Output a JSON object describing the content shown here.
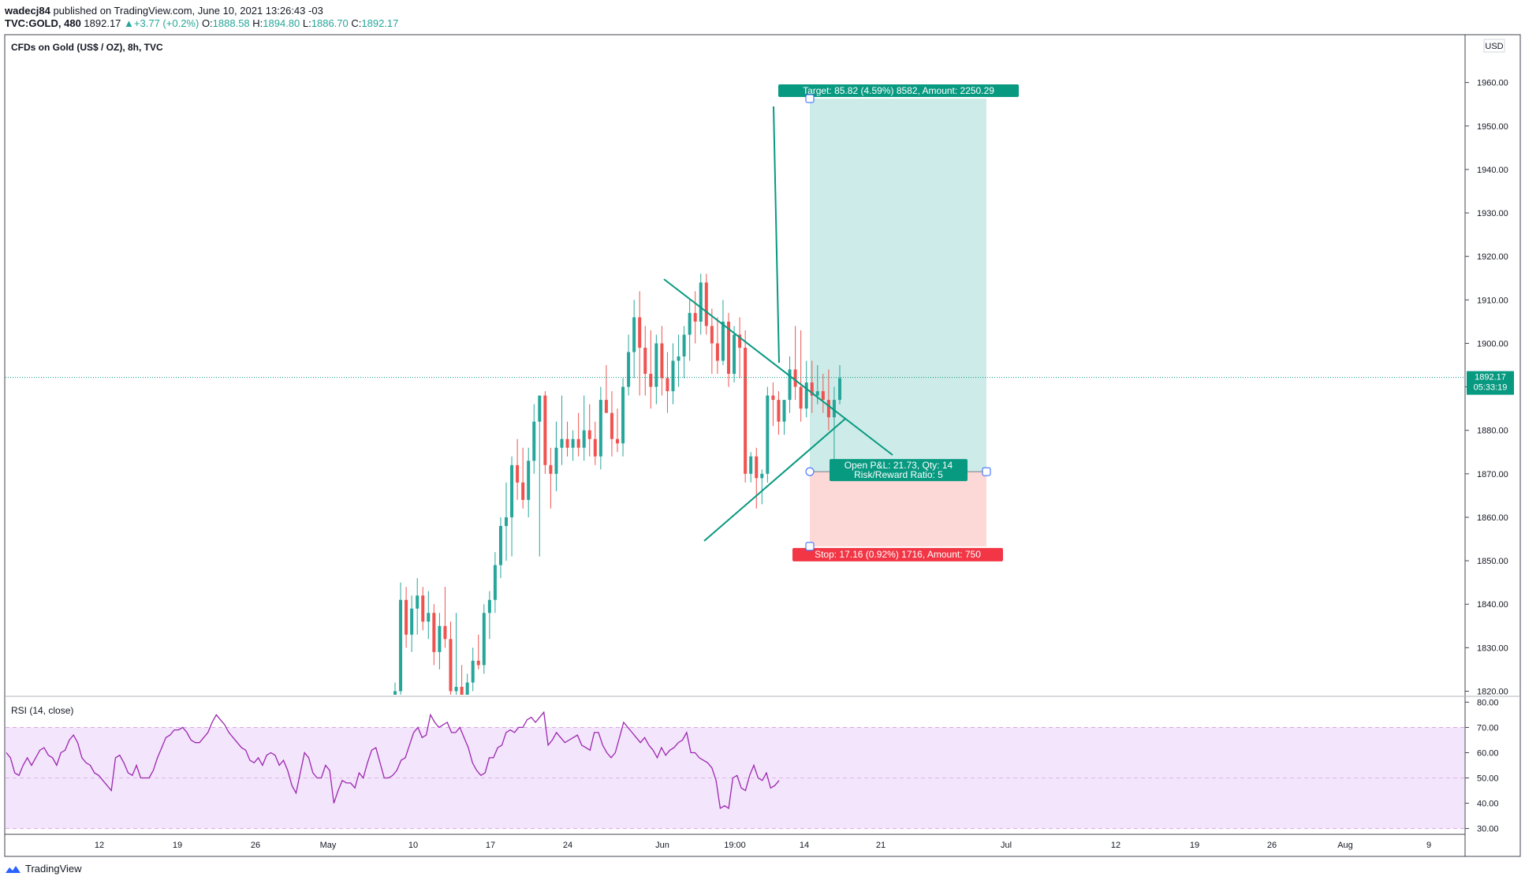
{
  "header": {
    "publisher": "wadecj84",
    "published_text": "published on TradingView.com, June 10, 2021 13:26:43 -03",
    "symbol": "TVC:GOLD, 480",
    "last": "1892.17",
    "change": "+3.77 (+0.2%)",
    "open_label": "O:",
    "open": "1888.58",
    "high_label": "H:",
    "high": "1894.80",
    "low_label": "L:",
    "low": "1886.70",
    "close_label": "C:",
    "close": "1892.17"
  },
  "pane_title": "CFDs on Gold (US$ / OZ), 8h, TVC",
  "currency_label": "USD",
  "price_label": "1892.17",
  "countdown": "05:33:19",
  "rsi_title": "RSI (14, close)",
  "footer_brand": "TradingView",
  "colors": {
    "up": "#26a69a",
    "down": "#ef5350",
    "line": "#089981",
    "target_bg": "#cdebe8",
    "stop_bg": "#fcd9d7",
    "rsi_line": "#9c27b0",
    "rsi_band": "#f3e5fb"
  },
  "position": {
    "target_label": "Target: 85.82 (4.59%) 8582, Amount: 2250.29",
    "stop_label": "Stop: 17.16 (0.92%) 1716, Amount: 750",
    "pnl_label": "Open P&L: 21.73, Qty: 14",
    "rr_label": "Risk/Reward Ratio: 5",
    "entry": 1870.5,
    "target": 1956.3,
    "stop": 1853.3
  },
  "chart_data": [
    {
      "type": "candlestick",
      "title": "CFDs on Gold (US$ / OZ), 8h, TVC",
      "ylim": [
        1819,
        1971
      ],
      "y_ticks": [
        1820,
        1830,
        1840,
        1850,
        1860,
        1870,
        1880,
        1890,
        1900,
        1910,
        1920,
        1930,
        1940,
        1950,
        1960
      ],
      "y_tick_labels": [
        "1820.00",
        "1830.00",
        "1840.00",
        "1850.00",
        "1860.00",
        "1870.00",
        "1880.00",
        "1890.00",
        "1900.00",
        "1910.00",
        "1920.00",
        "1930.00",
        "1940.00",
        "1950.00",
        "1960.00"
      ],
      "x_tick_labels": [
        "12",
        "19",
        "26",
        "May",
        "10",
        "17",
        "24",
        "Jun",
        "19:00",
        "14",
        "21",
        "Jul",
        "12",
        "19",
        "26",
        "Aug",
        "9"
      ],
      "last_price": 1892.17,
      "candles": [
        [
          1819,
          1822,
          1817,
          1820
        ],
        [
          1820,
          1845,
          1818,
          1841
        ],
        [
          1841,
          1844,
          1830,
          1833
        ],
        [
          1833,
          1842,
          1829,
          1839
        ],
        [
          1839,
          1846,
          1833,
          1842
        ],
        [
          1842,
          1844,
          1834,
          1836
        ],
        [
          1836,
          1843,
          1832,
          1838
        ],
        [
          1838,
          1840,
          1826,
          1829
        ],
        [
          1829,
          1838,
          1825,
          1835
        ],
        [
          1835,
          1844,
          1830,
          1832
        ],
        [
          1832,
          1836,
          1818,
          1820
        ],
        [
          1820,
          1838,
          1817,
          1821
        ],
        [
          1821,
          1826,
          1816,
          1818
        ],
        [
          1818,
          1824,
          1815,
          1822
        ],
        [
          1822,
          1830,
          1820,
          1827
        ],
        [
          1827,
          1833,
          1825,
          1826
        ],
        [
          1826,
          1840,
          1824,
          1838
        ],
        [
          1838,
          1843,
          1832,
          1841
        ],
        [
          1841,
          1852,
          1838,
          1849
        ],
        [
          1849,
          1860,
          1846,
          1858
        ],
        [
          1858,
          1868,
          1850,
          1860
        ],
        [
          1860,
          1874,
          1851,
          1872
        ],
        [
          1872,
          1878,
          1864,
          1868
        ],
        [
          1868,
          1876,
          1862,
          1864
        ],
        [
          1864,
          1876,
          1860,
          1873
        ],
        [
          1873,
          1886,
          1870,
          1882
        ],
        [
          1882,
          1888,
          1851,
          1888
        ],
        [
          1888,
          1889,
          1870,
          1872
        ],
        [
          1872,
          1876,
          1862,
          1870
        ],
        [
          1870,
          1882,
          1866,
          1876
        ],
        [
          1876,
          1888,
          1872,
          1878
        ],
        [
          1878,
          1882,
          1874,
          1876
        ],
        [
          1876,
          1880,
          1873,
          1878
        ],
        [
          1878,
          1884,
          1874,
          1876
        ],
        [
          1876,
          1888,
          1873,
          1880
        ],
        [
          1880,
          1886,
          1874,
          1878
        ],
        [
          1878,
          1882,
          1872,
          1874
        ],
        [
          1874,
          1890,
          1871,
          1887
        ],
        [
          1887,
          1895,
          1884,
          1884
        ],
        [
          1884,
          1889,
          1874,
          1878
        ],
        [
          1878,
          1885,
          1875,
          1877
        ],
        [
          1877,
          1892,
          1874,
          1890
        ],
        [
          1890,
          1902,
          1888,
          1898
        ],
        [
          1898,
          1910,
          1892,
          1906
        ],
        [
          1906,
          1912,
          1888,
          1899
        ],
        [
          1899,
          1904,
          1888,
          1893
        ],
        [
          1893,
          1903,
          1885,
          1890
        ],
        [
          1890,
          1902,
          1886,
          1900
        ],
        [
          1900,
          1904,
          1888,
          1892
        ],
        [
          1892,
          1898,
          1884,
          1889
        ],
        [
          1889,
          1900,
          1886,
          1896
        ],
        [
          1896,
          1902,
          1890,
          1897
        ],
        [
          1897,
          1904,
          1892,
          1902
        ],
        [
          1902,
          1910,
          1896,
          1907
        ],
        [
          1907,
          1912,
          1900,
          1905
        ],
        [
          1905,
          1916,
          1902,
          1914
        ],
        [
          1914,
          1916,
          1902,
          1904
        ],
        [
          1904,
          1908,
          1893,
          1900
        ],
        [
          1900,
          1906,
          1893,
          1896
        ],
        [
          1896,
          1910,
          1895,
          1905
        ],
        [
          1905,
          1907,
          1890,
          1893
        ],
        [
          1893,
          1904,
          1891,
          1902
        ],
        [
          1902,
          1906,
          1892,
          1899
        ],
        [
          1899,
          1903,
          1868,
          1870
        ],
        [
          1870,
          1875,
          1868,
          1874
        ],
        [
          1874,
          1876,
          1862,
          1869
        ],
        [
          1869,
          1871,
          1863,
          1870
        ],
        [
          1870,
          1890,
          1868,
          1888
        ],
        [
          1888,
          1891,
          1881,
          1887
        ],
        [
          1887,
          1889,
          1879,
          1882
        ],
        [
          1882,
          1887,
          1879,
          1887
        ],
        [
          1887,
          1897,
          1884,
          1894
        ],
        [
          1894,
          1904,
          1887,
          1890
        ],
        [
          1890,
          1903,
          1882,
          1885
        ],
        [
          1885,
          1896,
          1883,
          1891
        ],
        [
          1891,
          1896,
          1884,
          1888
        ],
        [
          1888,
          1895,
          1886,
          1889
        ],
        [
          1889,
          1893,
          1884,
          1887
        ],
        [
          1887,
          1894,
          1880,
          1883
        ],
        [
          1883,
          1890,
          1869,
          1887
        ],
        [
          1887,
          1895,
          1886,
          1892
        ]
      ]
    },
    {
      "type": "line",
      "title": "RSI (14, close)",
      "ylim": [
        28,
        82
      ],
      "y_ticks": [
        30,
        40,
        50,
        60,
        70,
        80
      ],
      "y_tick_labels": [
        "30.00",
        "40.00",
        "50.00",
        "60.00",
        "70.00",
        "80.00"
      ],
      "series": [
        {
          "values": [
            60,
            58,
            52,
            51,
            55,
            58,
            55,
            58,
            61,
            62,
            59,
            58,
            55,
            60,
            61,
            65,
            67,
            64,
            58,
            56,
            55,
            52,
            51,
            49,
            47,
            45,
            58,
            59,
            56,
            52,
            51,
            55,
            50,
            50,
            50,
            53,
            58,
            62,
            66,
            67,
            69,
            69,
            70,
            68,
            65,
            64,
            64,
            66,
            68,
            72,
            75,
            73,
            71,
            68,
            66,
            64,
            62,
            61,
            57,
            56,
            58,
            55,
            59,
            60,
            59,
            55,
            57,
            53,
            47,
            44,
            52,
            60,
            58,
            52,
            50,
            50,
            55,
            53,
            40,
            45,
            49,
            48,
            48,
            46,
            52,
            50,
            56,
            61,
            62,
            56,
            50,
            50,
            51,
            53,
            57,
            58,
            63,
            68,
            70,
            66,
            67,
            75,
            72,
            70,
            71,
            72,
            68,
            68,
            70,
            66,
            62,
            56,
            53,
            51,
            52,
            58,
            58,
            62,
            63,
            68,
            69,
            68,
            70,
            70,
            73,
            74,
            72,
            74,
            76,
            63,
            65,
            68,
            66,
            64,
            65,
            66,
            67,
            63,
            62,
            61,
            68,
            68,
            63,
            60,
            58,
            60,
            66,
            72,
            70,
            68,
            66,
            64,
            66,
            63,
            61,
            58,
            62,
            59,
            61,
            62,
            64,
            65,
            68,
            60,
            60,
            58,
            57,
            56,
            54,
            49,
            38,
            39,
            38,
            50,
            51,
            46,
            45,
            51,
            55,
            50,
            49,
            52,
            46,
            47,
            49
          ]
        }
      ]
    }
  ]
}
